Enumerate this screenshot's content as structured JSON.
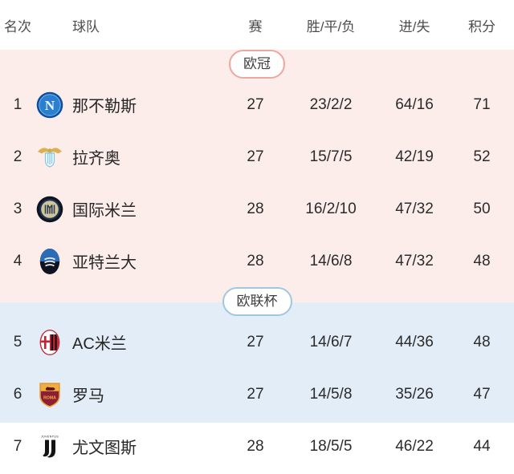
{
  "table": {
    "headers": {
      "rank": "名次",
      "team": "球队",
      "played": "赛",
      "wdl": "胜/平/负",
      "gfga": "进/失",
      "points": "积分"
    },
    "sections": [
      {
        "id": "champions-league",
        "label": "欧冠",
        "accent": "#eba8a1",
        "zone_bg": "#fcedeb"
      },
      {
        "id": "europa-league",
        "label": "欧联杯",
        "accent": "#9fc8dd",
        "zone_bg": "#e3edf8"
      }
    ],
    "rows": [
      {
        "rank": "1",
        "team": "那不勒斯",
        "logo": "napoli-crest",
        "played": "27",
        "wdl": "23/2/2",
        "gfga": "64/16",
        "points": "71",
        "zone": "champions-league"
      },
      {
        "rank": "2",
        "team": "拉齐奥",
        "logo": "lazio-crest",
        "played": "27",
        "wdl": "15/7/5",
        "gfga": "42/19",
        "points": "52",
        "zone": "champions-league"
      },
      {
        "rank": "3",
        "team": "国际米兰",
        "logo": "inter-crest",
        "played": "28",
        "wdl": "16/2/10",
        "gfga": "47/32",
        "points": "50",
        "zone": "champions-league"
      },
      {
        "rank": "4",
        "team": "亚特兰大",
        "logo": "atalanta-crest",
        "played": "28",
        "wdl": "14/6/8",
        "gfga": "47/32",
        "points": "48",
        "zone": "champions-league"
      },
      {
        "rank": "5",
        "team": "AC米兰",
        "logo": "milan-crest",
        "played": "27",
        "wdl": "14/6/7",
        "gfga": "44/36",
        "points": "48",
        "zone": "europa-league"
      },
      {
        "rank": "6",
        "team": "罗马",
        "logo": "roma-crest",
        "played": "27",
        "wdl": "14/5/8",
        "gfga": "35/26",
        "points": "47",
        "zone": "europa-league"
      },
      {
        "rank": "7",
        "team": "尤文图斯",
        "logo": "juventus-crest",
        "played": "28",
        "wdl": "18/5/5",
        "gfga": "46/22",
        "points": "44",
        "zone": "none"
      }
    ]
  }
}
